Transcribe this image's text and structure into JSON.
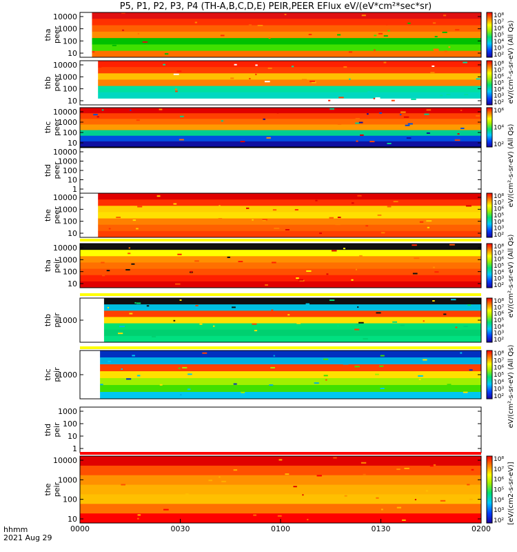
{
  "chart_data": {
    "type": "heatmap",
    "title": "P5, P1, P2, P3, P4 (TH-A,B,C,D,E) PEIR,PEER EFlux eV/(eV*cm²*sec*sr)",
    "x_ticks": [
      "0000",
      "0030",
      "0100",
      "0130",
      "0200"
    ],
    "x_range": [
      "00:00",
      "02:00"
    ],
    "footer": [
      "hhmm",
      "2021 Aug 29"
    ],
    "colorbar_ticks": [
      "10²",
      "10⁴",
      "10⁶"
    ],
    "colorbar_ticks_dense": [
      "10²",
      "10³",
      "10⁴",
      "10⁵",
      "10⁶",
      "10⁷",
      "10⁸"
    ],
    "colorbar_units": [
      "eV/(cm²-s-sr-eV) (All Qs)",
      "eV/(cm²-s-sr-eV) (All Qs)",
      "eV/(cm²-s-sr-eV) (All Qs)",
      "eV/(cm²-s-sr-eV) (All Qs)",
      "[eV/(cm2-s-sr-eV)]"
    ],
    "panels": [
      {
        "probe": "tha",
        "ylabel": "tha peer",
        "ytick_labels": [
          "10000",
          "1000",
          "100",
          "10"
        ],
        "colorbar": "dense",
        "start": 0.03,
        "color_scale": "log"
      },
      {
        "probe": "thb",
        "ylabel": "thb peer",
        "ytick_labels": [
          "10000",
          "1000",
          "100",
          "10"
        ],
        "colorbar": "dense",
        "start": 0.045
      },
      {
        "probe": "thc",
        "ylabel": "thc peer",
        "ytick_labels": [
          "10000",
          "1000",
          "100",
          "10"
        ],
        "colorbar": "normal",
        "start": 0.0
      },
      {
        "probe": "thd",
        "ylabel": "thd peer",
        "ytick_labels": [
          "10000",
          "1000",
          "100",
          "10",
          "1"
        ],
        "colorbar": "none",
        "start": null
      },
      {
        "probe": "the",
        "ylabel": "the peer",
        "ytick_labels": [
          "10000",
          "1000",
          "100",
          "10"
        ],
        "colorbar": "dense",
        "start": 0.045
      },
      {
        "probe": "tha",
        "ylabel": "tha peir",
        "ytick_labels": [
          "10000",
          "1000",
          "100",
          "10"
        ],
        "colorbar": "dense",
        "start": 0.0
      },
      {
        "probe": "thb",
        "ylabel": "thb peir",
        "ytick_labels": [
          "1000"
        ],
        "colorbar": "dense",
        "start": 0.06
      },
      {
        "probe": "thc",
        "ylabel": "thc peir",
        "ytick_labels": [
          "1000"
        ],
        "colorbar": "dense",
        "start": 0.05
      },
      {
        "probe": "thd",
        "ylabel": "thd peir",
        "ytick_labels": [
          "1000",
          "100",
          "10",
          "1"
        ],
        "colorbar": "none",
        "start": null
      },
      {
        "probe": "the",
        "ylabel": "the peir",
        "ytick_labels": [
          "10000",
          "1000",
          "100",
          "10"
        ],
        "colorbar": "dense",
        "start": 0.0
      }
    ]
  }
}
